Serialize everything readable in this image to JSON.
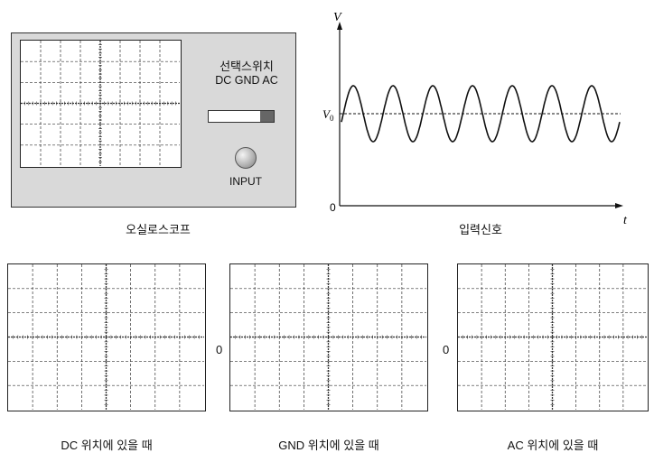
{
  "oscilloscope": {
    "caption": "오실로스코프",
    "selector_title": "선택스위치",
    "selector_positions": "DC GND AC",
    "input_label": "INPUT"
  },
  "signal": {
    "caption": "입력신호",
    "v_axis_label": "V",
    "t_axis_label": "t",
    "v0_label": "V",
    "v0_subscript": "0",
    "origin_label": "0",
    "cycles": 7
  },
  "screens": [
    {
      "caption": "DC 위치에 있을 때",
      "zero_label": ""
    },
    {
      "caption": "GND 위치에 있을 때",
      "zero_label": "0"
    },
    {
      "caption": "AC 위치에 있을 때",
      "zero_label": "0"
    }
  ]
}
